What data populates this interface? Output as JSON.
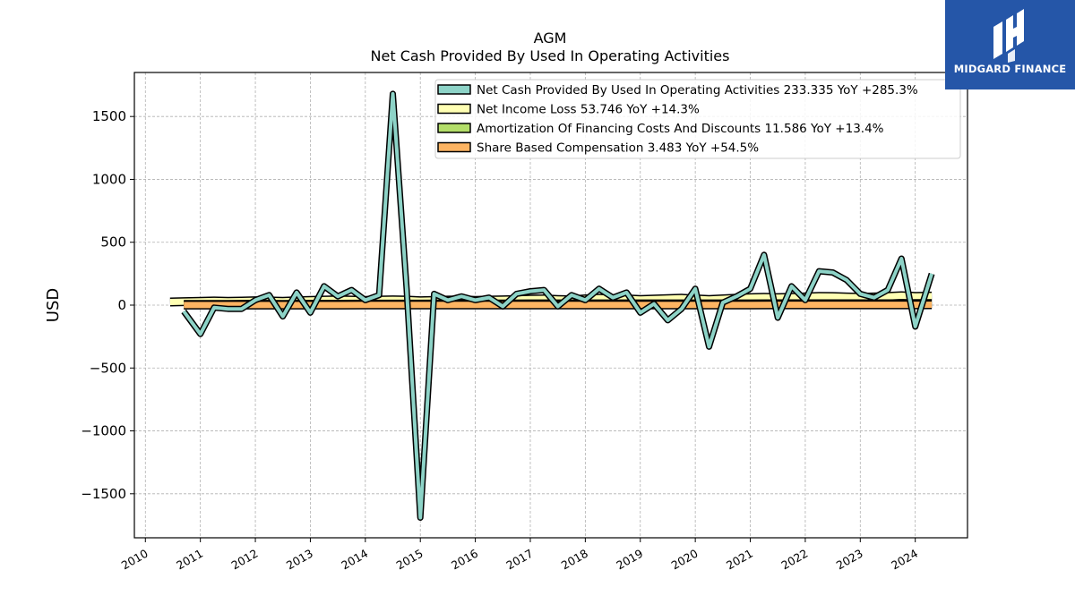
{
  "header": {
    "ticker": "AGM",
    "title": "Net Cash Provided By Used In Operating Activities"
  },
  "logo": {
    "text": "MIDGARD FINANCE",
    "icon": "midgard-logo-mark",
    "background": "#2556a8"
  },
  "chart_data": {
    "type": "line",
    "ylabel": "USD",
    "ylim": [
      -1850,
      1850
    ],
    "xlim": [
      2009.8,
      2024.95
    ],
    "y_ticks": [
      {
        "value": 1500,
        "label": "1500"
      },
      {
        "value": 1000,
        "label": "1000"
      },
      {
        "value": 500,
        "label": "500"
      },
      {
        "value": 0,
        "label": "0"
      },
      {
        "value": -500,
        "label": "−500"
      },
      {
        "value": -1000,
        "label": "−1000"
      },
      {
        "value": -1500,
        "label": "−1500"
      }
    ],
    "x_ticks": [
      {
        "value": 2010,
        "label": "2010"
      },
      {
        "value": 2011,
        "label": "2011"
      },
      {
        "value": 2012,
        "label": "2012"
      },
      {
        "value": 2013,
        "label": "2013"
      },
      {
        "value": 2014,
        "label": "2014"
      },
      {
        "value": 2015,
        "label": "2015"
      },
      {
        "value": 2016,
        "label": "2016"
      },
      {
        "value": 2017,
        "label": "2017"
      },
      {
        "value": 2018,
        "label": "2018"
      },
      {
        "value": 2019,
        "label": "2019"
      },
      {
        "value": 2020,
        "label": "2020"
      },
      {
        "value": 2021,
        "label": "2021"
      },
      {
        "value": 2022,
        "label": "2022"
      },
      {
        "value": 2023,
        "label": "2023"
      },
      {
        "value": 2024,
        "label": "2024"
      }
    ],
    "grid": true,
    "legend_position": "top-right",
    "series": [
      {
        "name": "Net Income Loss",
        "legend": "Net Income Loss  53.746 YoY +14.3%",
        "color": "#ffffb3",
        "x": [
          2010.45,
          2010.7,
          2011.0,
          2011.25,
          2011.5,
          2011.75,
          2012.0,
          2012.25,
          2012.5,
          2012.75,
          2013.0,
          2013.25,
          2013.5,
          2013.75,
          2014.0,
          2014.25,
          2014.5,
          2014.75,
          2015.0,
          2015.25,
          2015.5,
          2015.75,
          2016.0,
          2016.25,
          2016.5,
          2016.75,
          2017.0,
          2017.25,
          2017.5,
          2017.75,
          2018.0,
          2018.25,
          2018.5,
          2018.75,
          2019.0,
          2019.25,
          2019.5,
          2019.75,
          2020.0,
          2020.25,
          2020.5,
          2020.75,
          2021.0,
          2021.25,
          2021.5,
          2021.75,
          2022.0,
          2022.25,
          2022.5,
          2022.75,
          2023.0,
          2023.25,
          2023.5,
          2023.75,
          2024.0,
          2024.3
        ],
        "values": [
          25,
          28,
          30,
          33,
          30,
          32,
          35,
          33,
          30,
          35,
          38,
          40,
          42,
          40,
          38,
          40,
          42,
          40,
          35,
          38,
          40,
          42,
          38,
          40,
          42,
          45,
          48,
          50,
          45,
          42,
          50,
          55,
          52,
          50,
          45,
          48,
          52,
          55,
          50,
          45,
          50,
          55,
          60,
          62,
          60,
          62,
          65,
          70,
          68,
          65,
          62,
          65,
          70,
          75,
          70,
          72
        ]
      },
      {
        "name": "Amortization Of Financing Costs And Discounts",
        "legend": "Amortization Of Financing Costs And Discounts  11.586 YoY +13.4%",
        "color": "#b3de69",
        "x": [
          2010.7,
          2011.0,
          2011.5,
          2012.0,
          2012.5,
          2013.0,
          2013.5,
          2014.0,
          2014.5,
          2015.0,
          2015.5,
          2016.0,
          2016.5,
          2017.0,
          2017.5,
          2018.0,
          2018.5,
          2019.0,
          2019.5,
          2020.0,
          2020.5,
          2021.0,
          2021.5,
          2022.0,
          2022.5,
          2023.0,
          2023.5,
          2024.0,
          2024.3
        ],
        "values": [
          5,
          6,
          6,
          7,
          6,
          7,
          7,
          8,
          8,
          8,
          9,
          9,
          9,
          10,
          10,
          10,
          10,
          10,
          10,
          10,
          10,
          10,
          11,
          11,
          11,
          11,
          11,
          12,
          12
        ]
      },
      {
        "name": "Share Based Compensation",
        "legend": "Share Based Compensation  3.483 YoY +54.5%",
        "color": "#fdb462",
        "x": [
          2010.7,
          2011.0,
          2011.5,
          2012.0,
          2012.5,
          2013.0,
          2013.5,
          2014.0,
          2014.5,
          2015.0,
          2015.5,
          2016.0,
          2016.5,
          2017.0,
          2017.5,
          2018.0,
          2018.5,
          2019.0,
          2019.5,
          2020.0,
          2020.5,
          2021.0,
          2021.5,
          2022.0,
          2022.5,
          2023.0,
          2023.5,
          2024.0,
          2024.3
        ],
        "values": [
          1,
          1,
          1,
          1,
          1,
          1,
          1,
          2,
          2,
          2,
          2,
          2,
          2,
          2,
          2,
          2,
          2,
          2,
          2,
          2,
          2,
          2,
          3,
          3,
          3,
          3,
          3,
          3,
          3.5
        ]
      },
      {
        "name": "Net Cash Provided By Used In Operating Activities",
        "legend": "Net Cash Provided By Used In Operating Activities  233.335 YoY +285.3%",
        "color": "#8dd3c7",
        "x": [
          2010.7,
          2011.0,
          2011.25,
          2011.5,
          2011.75,
          2012.0,
          2012.25,
          2012.5,
          2012.75,
          2013.0,
          2013.25,
          2013.5,
          2013.75,
          2014.0,
          2014.25,
          2014.5,
          2014.75,
          2015.0,
          2015.25,
          2015.5,
          2015.75,
          2016.0,
          2016.25,
          2016.5,
          2016.75,
          2017.0,
          2017.25,
          2017.5,
          2017.75,
          2018.0,
          2018.25,
          2018.5,
          2018.75,
          2019.0,
          2019.25,
          2019.5,
          2019.75,
          2020.0,
          2020.25,
          2020.5,
          2020.75,
          2021.0,
          2021.25,
          2021.5,
          2021.75,
          2022.0,
          2022.25,
          2022.5,
          2022.75,
          2023.0,
          2023.25,
          2023.5,
          2023.75,
          2024.0,
          2024.3
        ],
        "values": [
          -50,
          -230,
          -20,
          -30,
          -30,
          40,
          80,
          -90,
          100,
          -60,
          150,
          70,
          120,
          40,
          80,
          1680,
          130,
          -1690,
          90,
          40,
          70,
          40,
          60,
          -10,
          90,
          110,
          120,
          -10,
          80,
          40,
          130,
          60,
          100,
          -60,
          10,
          -120,
          -30,
          130,
          -330,
          20,
          70,
          130,
          400,
          -100,
          150,
          40,
          270,
          260,
          200,
          90,
          60,
          120,
          370,
          -170,
          250
        ]
      }
    ],
    "legend_order": [
      "Net Cash Provided By Used In Operating Activities",
      "Net Income Loss",
      "Amortization Of Financing Costs And Discounts",
      "Share Based Compensation"
    ]
  }
}
